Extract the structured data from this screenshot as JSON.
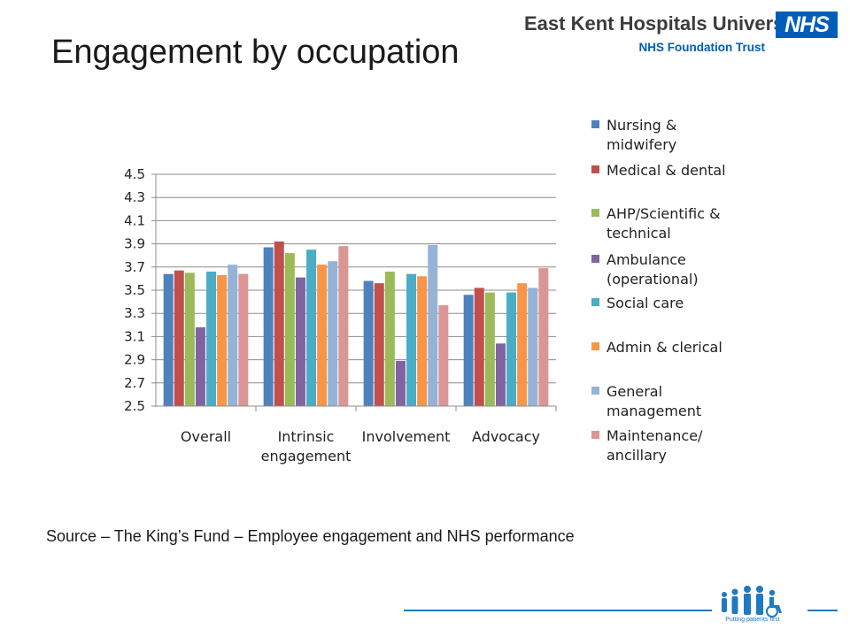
{
  "slide": {
    "title": "Engagement by occupation",
    "source": "Source – The King’s Fund – Employee engagement and NHS performance"
  },
  "header": {
    "org_name": "East Kent Hospitals University",
    "org_trust": "NHS Foundation Trust",
    "logo_text": "NHS"
  },
  "footer": {
    "logo_caption": "Putting patients first",
    "accent_color": "#1f7ac2"
  },
  "chart_data": {
    "type": "bar",
    "title": "",
    "xlabel": "",
    "ylabel": "",
    "ylim": [
      2.5,
      4.5
    ],
    "yticks": [
      "2.5",
      "2.7",
      "2.9",
      "3.1",
      "3.3",
      "3.5",
      "3.7",
      "3.9",
      "4.1",
      "4.3",
      "4.5"
    ],
    "grid": true,
    "legend_position": "right",
    "categories": [
      [
        "Overall"
      ],
      [
        "Intrinsic",
        "engagement"
      ],
      [
        "Involvement"
      ],
      [
        "Advocacy"
      ]
    ],
    "series": [
      {
        "name": [
          "Nursing &",
          "midwifery"
        ],
        "color": "#4f81bd",
        "values": [
          3.64,
          3.87,
          3.58,
          3.46
        ]
      },
      {
        "name": [
          "Medical & dental"
        ],
        "color": "#c0504d",
        "values": [
          3.67,
          3.92,
          3.56,
          3.52
        ]
      },
      {
        "name": [
          "AHP/Scientific &",
          "technical"
        ],
        "color": "#9bbb59",
        "values": [
          3.65,
          3.82,
          3.66,
          3.48
        ]
      },
      {
        "name": [
          "Ambulance",
          "(operational)"
        ],
        "color": "#8064a2",
        "values": [
          3.18,
          3.61,
          2.89,
          3.04
        ]
      },
      {
        "name": [
          "Social care"
        ],
        "color": "#4bacc6",
        "values": [
          3.66,
          3.85,
          3.64,
          3.48
        ]
      },
      {
        "name": [
          "Admin & clerical"
        ],
        "color": "#f79646",
        "values": [
          3.63,
          3.72,
          3.62,
          3.56
        ]
      },
      {
        "name": [
          "General",
          "management"
        ],
        "color": "#95b3d7",
        "values": [
          3.72,
          3.75,
          3.89,
          3.52
        ]
      },
      {
        "name": [
          "Maintenance/",
          "ancillary"
        ],
        "color": "#d99694",
        "values": [
          3.64,
          3.88,
          3.37,
          3.69
        ]
      }
    ]
  }
}
